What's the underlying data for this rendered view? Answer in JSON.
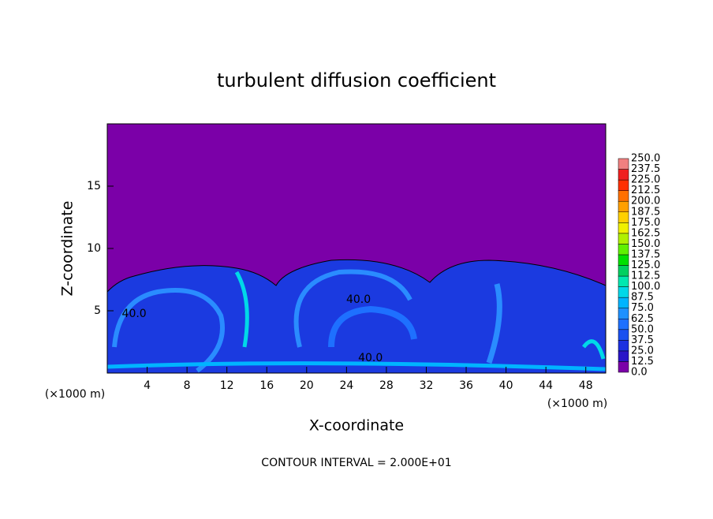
{
  "chart_data": {
    "type": "contour",
    "title": "turbulent diffusion coefficient",
    "xlabel": "X-coordinate",
    "ylabel": "Z-coordinate",
    "xunit": "(×1000 m)",
    "footer": "CONTOUR INTERVAL = 2.000E+01",
    "xlim": [
      0,
      50
    ],
    "ylim": [
      0,
      20
    ],
    "xticks": [
      4,
      8,
      12,
      16,
      20,
      24,
      28,
      32,
      36,
      40,
      44,
      48
    ],
    "yticks": [
      5,
      10,
      15
    ],
    "background_color": "#7b00a8",
    "annotations": [
      {
        "text": "40.0",
        "x": 25.2,
        "y": 5.9
      },
      {
        "text": "40.0",
        "x": 26.4,
        "y": 1.2
      },
      {
        "text": "40.0",
        "x": 2.7,
        "y": 4.75
      }
    ],
    "colorbar": {
      "ticks": [
        {
          "value": 0,
          "label": "0.0"
        },
        12.5,
        {
          "value": 25,
          "label": "25.0"
        },
        37.5,
        {
          "value": 50,
          "label": "50.0"
        },
        62.5,
        {
          "value": 75,
          "label": "75.0"
        },
        87.5,
        {
          "value": 100,
          "label": "100.0"
        },
        112.5,
        {
          "value": 125,
          "label": "125.0"
        },
        137.5,
        {
          "value": 150,
          "label": "150.0"
        },
        162.5,
        {
          "value": 175,
          "label": "175.0"
        },
        187.5,
        {
          "value": 200,
          "label": "200.0"
        },
        212.5,
        {
          "value": 225,
          "label": "225.0"
        },
        237.5,
        {
          "value": 250,
          "label": "250.0"
        }
      ],
      "colors": [
        "#7b00a8",
        "#2a14c8",
        "#1c30e0",
        "#1a50f0",
        "#1e70ff",
        "#1e90ff",
        "#00b4ff",
        "#00d8e8",
        "#00e8b0",
        "#00d060",
        "#00e000",
        "#60f000",
        "#b0f000",
        "#f0f000",
        "#ffd000",
        "#ffa000",
        "#ff7000",
        "#ff3000",
        "#f02020",
        "#f08080"
      ]
    }
  }
}
